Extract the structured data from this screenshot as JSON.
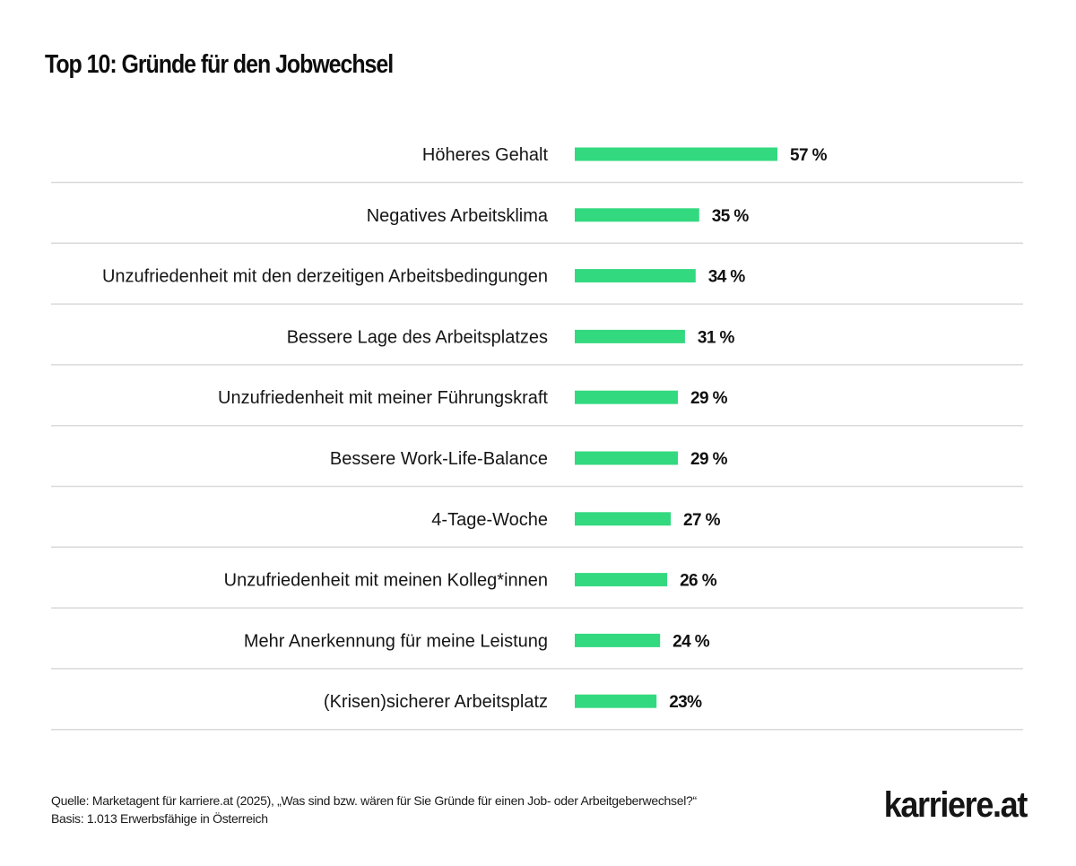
{
  "header": {
    "title": "Top 10: Gründe für den Jobwechsel"
  },
  "chart_data": {
    "type": "bar",
    "orientation": "horizontal",
    "title": "Top 10: Gründe für den Jobwechsel",
    "xlabel": "",
    "ylabel": "",
    "unit": "%",
    "xlim": [
      0,
      100
    ],
    "grid": false,
    "bar_color": "#33d97f",
    "separator_color": "#d9d9d9",
    "categories": [
      "Höheres Gehalt",
      "Negatives Arbeitsklima",
      "Unzufriedenheit mit den derzeitigen Arbeitsbedingungen",
      "Bessere Lage des Arbeitsplatzes",
      "Unzufriedenheit mit meiner Führungskraft",
      "Bessere Work-Life-Balance",
      "4-Tage-Woche",
      "Unzufriedenheit mit meinen Kolleg*innen",
      "Mehr Anerkennung für meine Leistung",
      "(Krisen)sicherer Arbeitsplatz"
    ],
    "values": [
      57,
      35,
      34,
      31,
      29,
      29,
      27,
      26,
      24,
      23
    ],
    "value_labels": [
      "57 %",
      "35 %",
      "34 %",
      "31 %",
      "29 %",
      "29 %",
      "27 %",
      "26 %",
      "24 %",
      "23%"
    ]
  },
  "footer": {
    "source": "Quelle: Marketagent für karriere.at (2025), „Was sind bzw. wären für Sie Gründe für einen Job- oder Arbeitgeberwechsel?“",
    "basis": "Basis: 1.013 Erwerbsfähige in Österreich"
  },
  "brand": {
    "logo_text": "karriere.at"
  }
}
